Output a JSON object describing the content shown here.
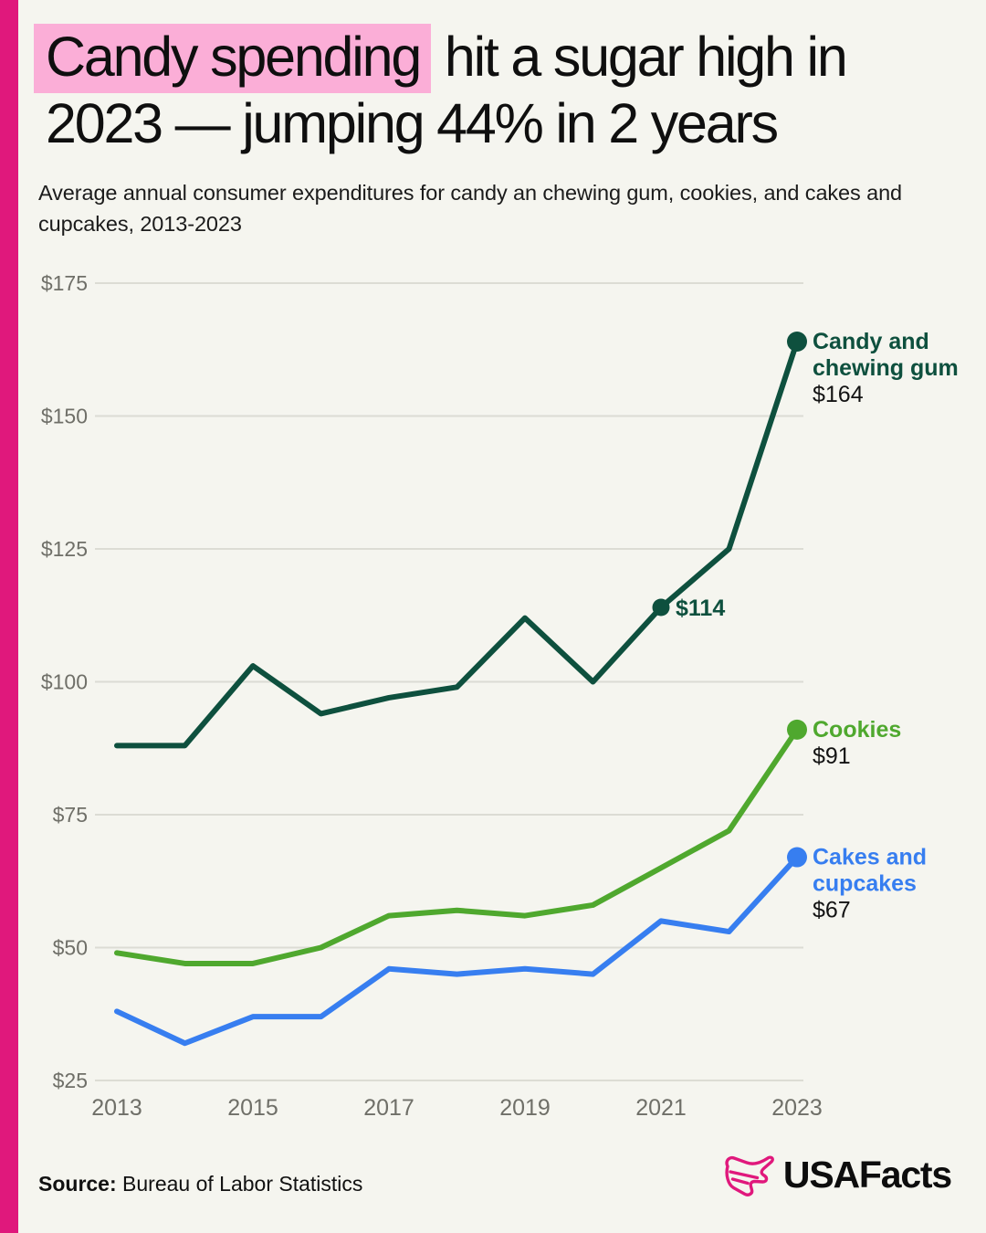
{
  "header": {
    "title_highlight": "Candy spending",
    "title_line1_rest": " hit a sugar high in",
    "title_line2": "2023 — jumping 44% in 2 years",
    "subtitle_lines": [
      "Average annual consumer expenditures for candy an chewing gum, cookies, and cakes and",
      "cupcakes, 2013-2023"
    ]
  },
  "chart_data": {
    "type": "line",
    "title": "Candy spending hit a sugar high in 2023 — jumping 44% in 2 years",
    "subtitle": "Average annual consumer expenditures for candy an chewing gum, cookies, and cakes and cupcakes, 2013-2023",
    "x": [
      2013,
      2014,
      2015,
      2016,
      2017,
      2018,
      2019,
      2020,
      2021,
      2022,
      2023
    ],
    "x_ticks": [
      2013,
      2015,
      2017,
      2019,
      2021,
      2023
    ],
    "y_ticks": [
      25,
      50,
      75,
      100,
      125,
      150,
      175
    ],
    "ylim": [
      25,
      175
    ],
    "y_tick_prefix": "$",
    "xlabel": "",
    "ylabel": "",
    "grid": "horizontal",
    "legend_position": "right-end-of-line-labels",
    "series": [
      {
        "name": "Candy and chewing gum",
        "label_lines": [
          "Candy and",
          "chewing gum"
        ],
        "end_value_label": "$164",
        "color": "#0e503e",
        "values": [
          88,
          88,
          103,
          94,
          97,
          99,
          112,
          100,
          114,
          125,
          164
        ],
        "annotations": [
          {
            "x": 2021,
            "label": "$114"
          }
        ]
      },
      {
        "name": "Cookies",
        "label_lines": [
          "Cookies"
        ],
        "end_value_label": "$91",
        "color": "#4fa82e",
        "values": [
          49,
          47,
          47,
          50,
          56,
          57,
          56,
          58,
          65,
          72,
          91
        ],
        "annotations": []
      },
      {
        "name": "Cakes and cupcakes",
        "label_lines": [
          "Cakes and",
          "cupcakes"
        ],
        "end_value_label": "$67",
        "color": "#377ef0",
        "values": [
          38,
          32,
          37,
          37,
          46,
          45,
          46,
          45,
          55,
          53,
          67
        ],
        "annotations": []
      }
    ]
  },
  "footer": {
    "source_label": "Source:",
    "source_text": "Bureau of Labor Statistics",
    "brand": "USAFacts"
  },
  "colors": {
    "background": "#f5f5ef",
    "accent_bar": "#e0187c",
    "title_highlight_bg": "#fbaed7",
    "gridline": "#dcdcd4",
    "axis_label": "#6f6f68",
    "value_text": "#131313"
  }
}
